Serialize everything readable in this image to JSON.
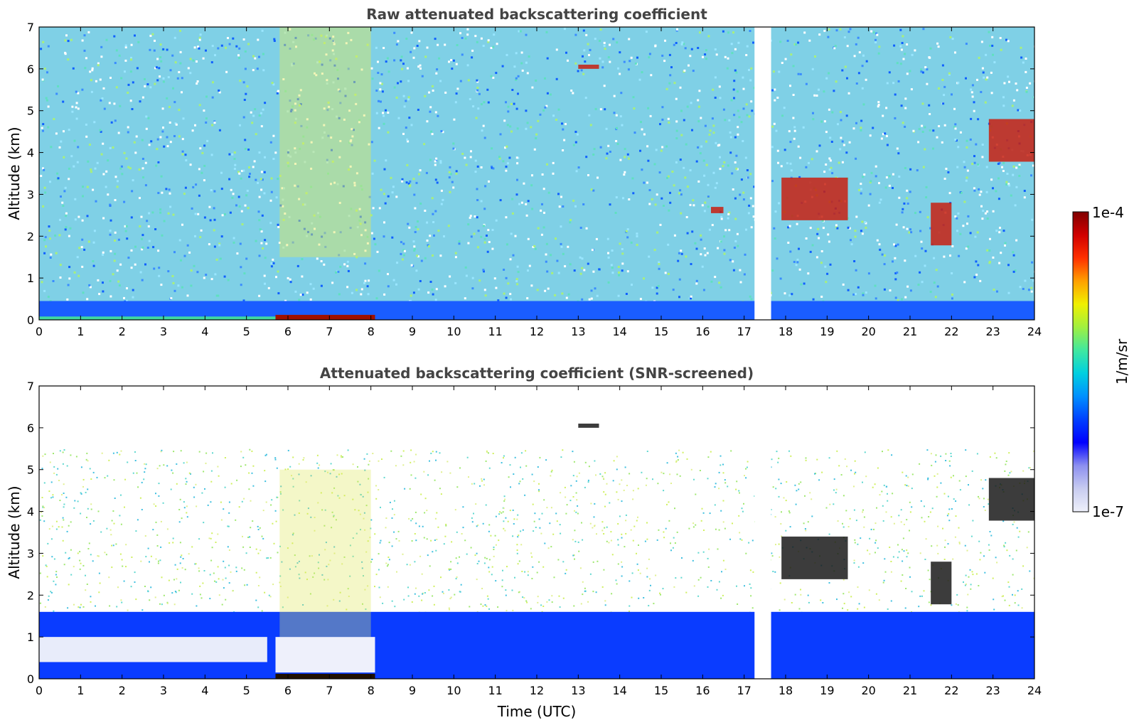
{
  "chart_data": [
    {
      "type": "heatmap",
      "title": "Raw attenuated backscattering coefficient",
      "xlabel": "",
      "ylabel": "Altitude (km)",
      "xlim": [
        0,
        24
      ],
      "ylim": [
        0,
        7
      ],
      "xticks": [
        0,
        1,
        2,
        3,
        4,
        5,
        6,
        7,
        8,
        9,
        10,
        11,
        12,
        13,
        14,
        15,
        16,
        17,
        18,
        19,
        20,
        21,
        22,
        23,
        24
      ],
      "yticks": [
        0,
        1,
        2,
        3,
        4,
        5,
        6,
        7
      ],
      "data_gaps_utc": [
        [
          17.25,
          17.65
        ]
      ],
      "features": [
        {
          "kind": "surface layer",
          "x": [
            0,
            24
          ],
          "y": [
            0,
            0.45
          ]
        },
        {
          "kind": "strong near-surface return",
          "x": [
            5.7,
            8.1
          ],
          "y": [
            0,
            0.12
          ]
        },
        {
          "kind": "elevated aerosol",
          "x": [
            5.8,
            8.0
          ],
          "y": [
            1.5,
            7
          ]
        },
        {
          "kind": "cloud",
          "x": [
            17.9,
            19.5
          ],
          "y": [
            2.0,
            3.4
          ]
        },
        {
          "kind": "cloud",
          "x": [
            21.5,
            22.0
          ],
          "y": [
            1.7,
            2.8
          ]
        },
        {
          "kind": "cloud",
          "x": [
            22.9,
            24.0
          ],
          "y": [
            2.9,
            4.8
          ]
        },
        {
          "kind": "cloud",
          "x": [
            16.2,
            16.5
          ],
          "y": [
            2.55,
            2.7
          ]
        },
        {
          "kind": "cloud",
          "x": [
            13.0,
            13.5
          ],
          "y": [
            6.0,
            6.1
          ]
        }
      ]
    },
    {
      "type": "heatmap",
      "title": "Attenuated backscattering coefficient (SNR-screened)",
      "xlabel": "Time (UTC)",
      "ylabel": "Altitude (km)",
      "xlim": [
        0,
        24
      ],
      "ylim": [
        0,
        7
      ],
      "xticks": [
        0,
        1,
        2,
        3,
        4,
        5,
        6,
        7,
        8,
        9,
        10,
        11,
        12,
        13,
        14,
        15,
        16,
        17,
        18,
        19,
        20,
        21,
        22,
        23,
        24
      ],
      "yticks": [
        0,
        1,
        2,
        3,
        4,
        5,
        6,
        7
      ],
      "data_gaps_utc": [
        [
          17.25,
          17.65
        ]
      ],
      "features": [
        {
          "kind": "boundary layer",
          "x": [
            0,
            24
          ],
          "y": [
            0,
            1.8
          ]
        },
        {
          "kind": "low-signal region",
          "x": [
            0,
            5.5
          ],
          "y": [
            0.4,
            1.0
          ]
        },
        {
          "kind": "strong near-surface return",
          "x": [
            5.7,
            8.1
          ],
          "y": [
            0,
            0.12
          ]
        },
        {
          "kind": "elevated aerosol",
          "x": [
            5.8,
            8.0
          ],
          "y": [
            1.0,
            5.0
          ]
        },
        {
          "kind": "cloud",
          "x": [
            17.9,
            19.5
          ],
          "y": [
            2.0,
            3.4
          ]
        },
        {
          "kind": "cloud",
          "x": [
            21.5,
            22.0
          ],
          "y": [
            1.7,
            2.8
          ]
        },
        {
          "kind": "cloud",
          "x": [
            22.9,
            24.0
          ],
          "y": [
            2.9,
            4.8
          ]
        },
        {
          "kind": "cloud",
          "x": [
            13.0,
            13.5
          ],
          "y": [
            6.0,
            6.1
          ]
        }
      ]
    }
  ],
  "colorbar": {
    "max_label": "1e-4",
    "min_label": "1e-7",
    "unit_label": "1/m/sr",
    "scale": "log",
    "colors": [
      "#eef0fa",
      "#c8ccf0",
      "#8c8ff0",
      "#0000ff",
      "#0040ff",
      "#0090ff",
      "#00d0e0",
      "#40e8a0",
      "#a0f040",
      "#f0f000",
      "#ffa000",
      "#ff3000",
      "#d00000",
      "#800000"
    ]
  }
}
